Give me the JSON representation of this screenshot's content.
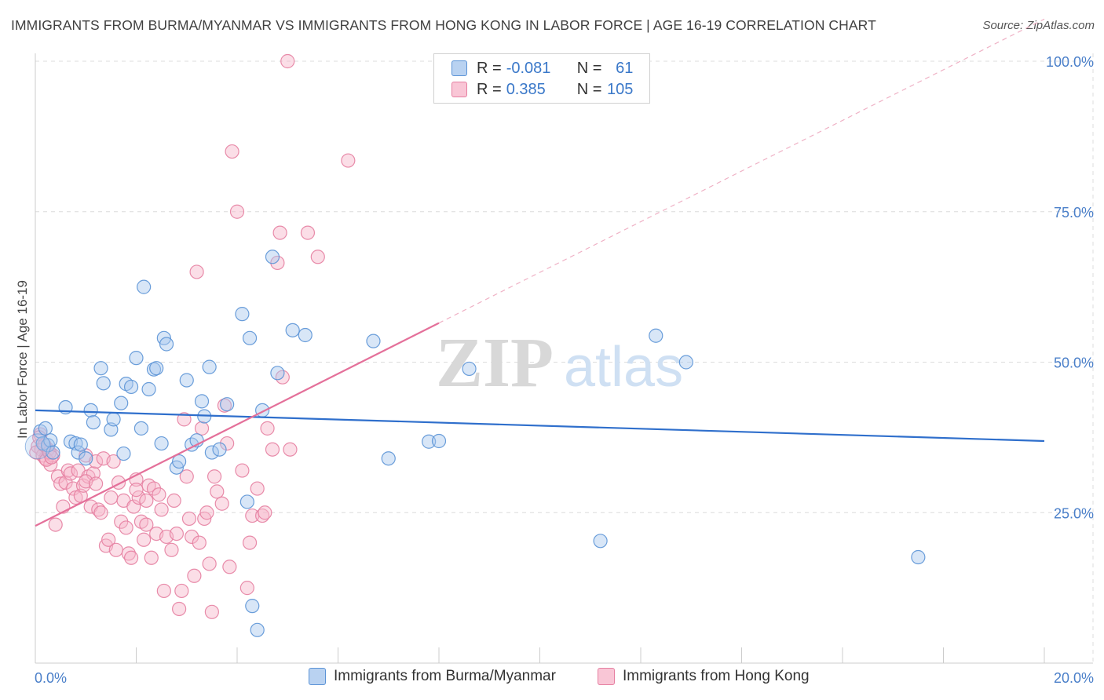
{
  "title": "IMMIGRANTS FROM BURMA/MYANMAR VS IMMIGRANTS FROM HONG KONG IN LABOR FORCE | AGE 16-19 CORRELATION CHART",
  "source": "Source: ZipAtlas.com",
  "watermark": {
    "zip": "ZIP",
    "atlas": "atlas"
  },
  "legend": {
    "rows": [
      {
        "r_label": "R =",
        "r_value": "-0.081",
        "n_label": "N =",
        "n_value": "61"
      },
      {
        "r_label": "R =",
        "r_value": "0.385",
        "n_label": "N =",
        "n_value": "105"
      }
    ]
  },
  "bottom_legend": [
    "Immigrants from Burma/Myanmar",
    "Immigrants from Hong Kong"
  ],
  "colors": {
    "blue_fill": "#a9c8ee",
    "blue_stroke": "#5b93d6",
    "blue_line": "#2f6fcc",
    "pink_fill": "#f6b6ca",
    "pink_stroke": "#e67fa1",
    "pink_line": "#e4709a",
    "grid": "#dcdcdc",
    "tick_text": "#4a7fc9"
  },
  "chart_data": {
    "type": "scatter",
    "title": "IMMIGRANTS FROM BURMA/MYANMAR VS IMMIGRANTS FROM HONG KONG IN LABOR FORCE | AGE 16-19 CORRELATION CHART",
    "xlabel": "",
    "ylabel": "In Labor Force | Age 16-19",
    "xlim": [
      0,
      20
    ],
    "ylim": [
      0,
      100
    ],
    "x_tick_labels": [
      "0.0%",
      "20.0%"
    ],
    "y_tick_labels": [
      "25.0%",
      "50.0%",
      "75.0%",
      "100.0%"
    ],
    "y_ticks": [
      25,
      50,
      75,
      100
    ],
    "grid": true,
    "series": [
      {
        "name": "Immigrants from Burma/Myanmar",
        "color": "#5b93d6",
        "trend": {
          "x": [
            0,
            20
          ],
          "y": [
            42.0,
            36.9
          ]
        },
        "points": [
          [
            0.1,
            38.5
          ],
          [
            0.15,
            36.5
          ],
          [
            0.2,
            39.0
          ],
          [
            0.25,
            36.2
          ],
          [
            0.3,
            37.0
          ],
          [
            0.35,
            35.0
          ],
          [
            0.6,
            42.5
          ],
          [
            0.7,
            36.8
          ],
          [
            0.8,
            36.5
          ],
          [
            0.85,
            35.0
          ],
          [
            0.9,
            36.3
          ],
          [
            1.0,
            34.0
          ],
          [
            1.1,
            42.0
          ],
          [
            1.15,
            40.0
          ],
          [
            1.3,
            49.0
          ],
          [
            1.35,
            46.5
          ],
          [
            1.5,
            38.8
          ],
          [
            1.55,
            40.5
          ],
          [
            1.7,
            43.2
          ],
          [
            1.75,
            34.8
          ],
          [
            1.8,
            46.4
          ],
          [
            1.9,
            45.9
          ],
          [
            2.0,
            50.7
          ],
          [
            2.1,
            39.0
          ],
          [
            2.15,
            62.5
          ],
          [
            2.25,
            45.5
          ],
          [
            2.35,
            48.8
          ],
          [
            2.4,
            49.0
          ],
          [
            2.5,
            36.5
          ],
          [
            2.55,
            54.0
          ],
          [
            2.6,
            53.0
          ],
          [
            2.8,
            32.5
          ],
          [
            2.85,
            33.5
          ],
          [
            3.0,
            47.0
          ],
          [
            3.1,
            36.3
          ],
          [
            3.2,
            37.0
          ],
          [
            3.3,
            43.5
          ],
          [
            3.35,
            41.0
          ],
          [
            3.45,
            49.2
          ],
          [
            3.5,
            35.0
          ],
          [
            3.65,
            35.5
          ],
          [
            3.8,
            43.0
          ],
          [
            4.1,
            58.0
          ],
          [
            4.2,
            26.8
          ],
          [
            4.25,
            54.0
          ],
          [
            4.3,
            9.5
          ],
          [
            4.4,
            5.5
          ],
          [
            4.5,
            42.0
          ],
          [
            4.7,
            67.5
          ],
          [
            4.8,
            48.2
          ],
          [
            5.1,
            55.3
          ],
          [
            5.35,
            54.5
          ],
          [
            6.7,
            53.5
          ],
          [
            7.0,
            34.0
          ],
          [
            7.8,
            36.8
          ],
          [
            8.0,
            36.9
          ],
          [
            8.6,
            48.9
          ],
          [
            11.2,
            20.3
          ],
          [
            12.3,
            54.4
          ],
          [
            12.9,
            50.0
          ],
          [
            17.5,
            17.6
          ]
        ]
      },
      {
        "name": "Immigrants from Hong Kong",
        "color": "#e67fa1",
        "trend": {
          "x": [
            0,
            8.0
          ],
          "y": [
            22.8,
            56.5
          ],
          "dashed_x": [
            8.0,
            20
          ],
          "dashed_y": [
            56.5,
            107.0
          ]
        },
        "points": [
          [
            0.05,
            36.0
          ],
          [
            0.1,
            38.0
          ],
          [
            0.12,
            35.5
          ],
          [
            0.15,
            34.5
          ],
          [
            0.2,
            34.0
          ],
          [
            0.25,
            35.5
          ],
          [
            0.3,
            33.0
          ],
          [
            0.35,
            34.5
          ],
          [
            0.4,
            23.0
          ],
          [
            0.45,
            31.0
          ],
          [
            0.5,
            29.8
          ],
          [
            0.55,
            26.0
          ],
          [
            0.6,
            30.0
          ],
          [
            0.65,
            32.0
          ],
          [
            0.7,
            31.5
          ],
          [
            0.75,
            29.0
          ],
          [
            0.8,
            27.5
          ],
          [
            0.85,
            32.0
          ],
          [
            0.9,
            27.8
          ],
          [
            0.95,
            29.5
          ],
          [
            1.0,
            34.5
          ],
          [
            1.05,
            31.0
          ],
          [
            1.1,
            26.0
          ],
          [
            1.15,
            31.5
          ],
          [
            1.2,
            33.5
          ],
          [
            1.25,
            25.5
          ],
          [
            1.3,
            25.0
          ],
          [
            1.35,
            34.0
          ],
          [
            1.4,
            19.5
          ],
          [
            1.45,
            20.5
          ],
          [
            1.5,
            27.5
          ],
          [
            1.55,
            33.5
          ],
          [
            1.6,
            18.8
          ],
          [
            1.65,
            30.0
          ],
          [
            1.7,
            23.5
          ],
          [
            1.75,
            27.0
          ],
          [
            1.8,
            22.5
          ],
          [
            1.85,
            18.2
          ],
          [
            1.9,
            17.5
          ],
          [
            1.95,
            26.0
          ],
          [
            2.0,
            30.5
          ],
          [
            2.05,
            27.5
          ],
          [
            2.1,
            23.5
          ],
          [
            2.15,
            20.5
          ],
          [
            2.2,
            27.0
          ],
          [
            2.25,
            29.5
          ],
          [
            2.3,
            17.5
          ],
          [
            2.35,
            29.0
          ],
          [
            2.4,
            21.5
          ],
          [
            2.45,
            28.0
          ],
          [
            2.5,
            25.5
          ],
          [
            2.55,
            12.0
          ],
          [
            2.6,
            21.0
          ],
          [
            2.7,
            18.8
          ],
          [
            2.75,
            27.0
          ],
          [
            2.8,
            21.5
          ],
          [
            2.85,
            9.0
          ],
          [
            2.9,
            12.0
          ],
          [
            2.95,
            40.5
          ],
          [
            3.0,
            31.0
          ],
          [
            3.05,
            24.0
          ],
          [
            3.1,
            21.0
          ],
          [
            3.15,
            14.5
          ],
          [
            3.2,
            65.0
          ],
          [
            3.25,
            20.0
          ],
          [
            3.3,
            39.0
          ],
          [
            3.35,
            24.0
          ],
          [
            3.4,
            25.0
          ],
          [
            3.45,
            16.5
          ],
          [
            3.5,
            8.5
          ],
          [
            3.55,
            31.0
          ],
          [
            3.6,
            28.5
          ],
          [
            3.7,
            26.5
          ],
          [
            3.75,
            42.8
          ],
          [
            3.8,
            36.5
          ],
          [
            3.85,
            16.0
          ],
          [
            3.9,
            85.0
          ],
          [
            4.0,
            75.0
          ],
          [
            4.1,
            32.0
          ],
          [
            4.2,
            12.5
          ],
          [
            4.25,
            20.0
          ],
          [
            4.3,
            24.5
          ],
          [
            4.4,
            29.0
          ],
          [
            4.5,
            24.5
          ],
          [
            4.55,
            25.0
          ],
          [
            4.6,
            39.0
          ],
          [
            4.7,
            35.5
          ],
          [
            4.8,
            66.5
          ],
          [
            4.85,
            71.5
          ],
          [
            4.9,
            47.5
          ],
          [
            5.0,
            100.0
          ],
          [
            5.05,
            35.5
          ],
          [
            5.4,
            71.5
          ],
          [
            5.6,
            67.5
          ],
          [
            6.2,
            83.5
          ],
          [
            0.02,
            35.0
          ],
          [
            0.08,
            37.5
          ],
          [
            0.18,
            36.2
          ],
          [
            0.22,
            33.8
          ],
          [
            0.28,
            35.0
          ],
          [
            0.32,
            34.2
          ],
          [
            1.0,
            30.2
          ],
          [
            1.2,
            29.8
          ],
          [
            2.0,
            28.8
          ],
          [
            2.2,
            23.0
          ]
        ]
      }
    ]
  }
}
